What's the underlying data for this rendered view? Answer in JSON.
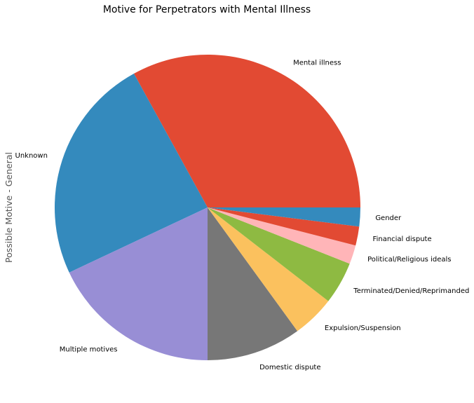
{
  "chart_data": {
    "type": "pie",
    "title": "Motive for Perpetrators with Mental Illness",
    "ylabel": "Possible Motive - General",
    "xlabel": "",
    "start_angle_deg": 0,
    "direction": "counterclockwise",
    "slices": [
      {
        "label": "Mental illness",
        "value": 33,
        "color": "#E24A33"
      },
      {
        "label": "Unknown",
        "value": 24,
        "color": "#348ABD"
      },
      {
        "label": "Multiple motives",
        "value": 18,
        "color": "#988ED5"
      },
      {
        "label": "Domestic dispute",
        "value": 10,
        "color": "#777777"
      },
      {
        "label": "Expulsion/Suspension",
        "value": 4.5,
        "color": "#FBC15E"
      },
      {
        "label": "Terminated/Denied/Reprimanded",
        "value": 4.5,
        "color": "#8EBA42"
      },
      {
        "label": "Political/Religious ideals",
        "value": 2,
        "color": "#FFB5B8"
      },
      {
        "label": "Financial dispute",
        "value": 2,
        "color": "#E24A33"
      },
      {
        "label": "Gender",
        "value": 2,
        "color": "#348ABD"
      }
    ]
  }
}
